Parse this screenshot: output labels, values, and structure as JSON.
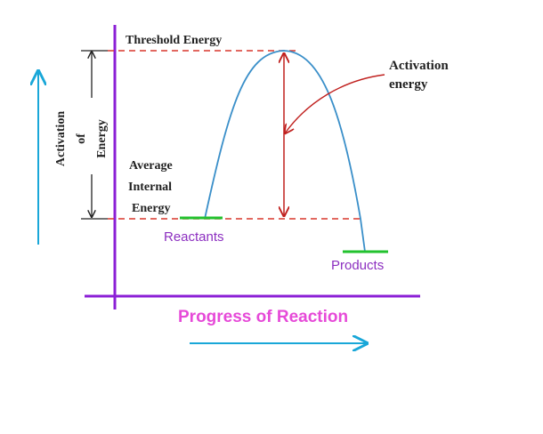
{
  "labels": {
    "threshold": "Threshold Energy",
    "activation_energy_line1": "Activation",
    "activation_energy_line2": "energy",
    "average_line1": "Average",
    "average_line2": "Internal",
    "average_line3": "Energy",
    "reactants": "Reactants",
    "products": "Products",
    "x_axis": "Progress of Reaction",
    "y_outer": "Activation",
    "y_of": "of",
    "y_inner": "Energy"
  },
  "colors": {
    "axis": "#8b1fd6",
    "curve": "#3a8fc9",
    "dashed": "#d9362b",
    "double_arrow": "#c0201e",
    "level_marker": "#22c22e",
    "cyan_arrow": "#19a7d8",
    "label_purple": "#8c2fc0",
    "x_label": "#e64ad8",
    "text": "#222222"
  }
}
